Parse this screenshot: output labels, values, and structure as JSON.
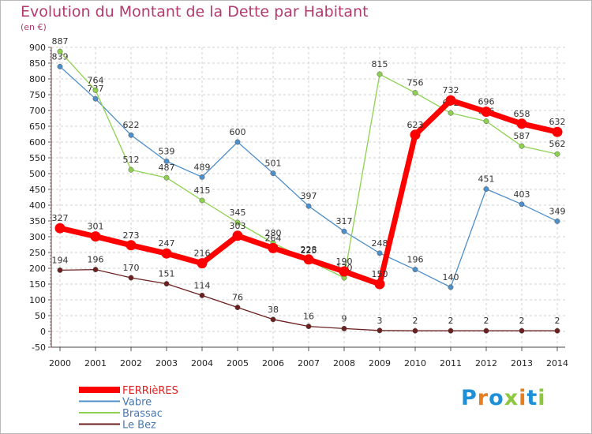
{
  "title": "Evolution du Montant de la Dette par Habitant",
  "unit": "(en €)",
  "logo_text": "Proxiti",
  "chart_data": {
    "type": "line",
    "title": "Evolution du Montant de la Dette par Habitant",
    "ylabel": "(en €)",
    "x": [
      "2000",
      "2001",
      "2002",
      "2003",
      "2004",
      "2005",
      "2006",
      "2007",
      "2008",
      "2009",
      "2010",
      "2011",
      "2012",
      "2013",
      "2014"
    ],
    "ylim": [
      -50,
      900
    ],
    "yticks": [
      -50,
      0,
      50,
      100,
      150,
      200,
      250,
      300,
      350,
      400,
      450,
      500,
      550,
      600,
      650,
      700,
      750,
      800,
      850,
      900
    ],
    "grid": true,
    "legend_position": "bottom-left",
    "series": [
      {
        "name": "FERRièRES",
        "color": "#ff0000",
        "values": [
          327,
          301,
          273,
          247,
          216,
          303,
          264,
          228,
          190,
          150,
          623,
          732,
          696,
          658,
          632
        ]
      },
      {
        "name": "Vabre",
        "color": "#4f8fc9",
        "values": [
          839,
          737,
          622,
          539,
          489,
          600,
          501,
          397,
          317,
          248,
          196,
          140,
          451,
          403,
          349
        ]
      },
      {
        "name": "Brassac",
        "color": "#8ed151",
        "values": [
          887,
          764,
          512,
          487,
          415,
          345,
          280,
          225,
          170,
          815,
          756,
          692,
          666,
          587,
          562
        ]
      },
      {
        "name": "Le Bez",
        "color": "#6b1f1f",
        "values": [
          194,
          196,
          170,
          151,
          114,
          76,
          38,
          16,
          9,
          3,
          2,
          2,
          2,
          2,
          2
        ]
      }
    ]
  }
}
